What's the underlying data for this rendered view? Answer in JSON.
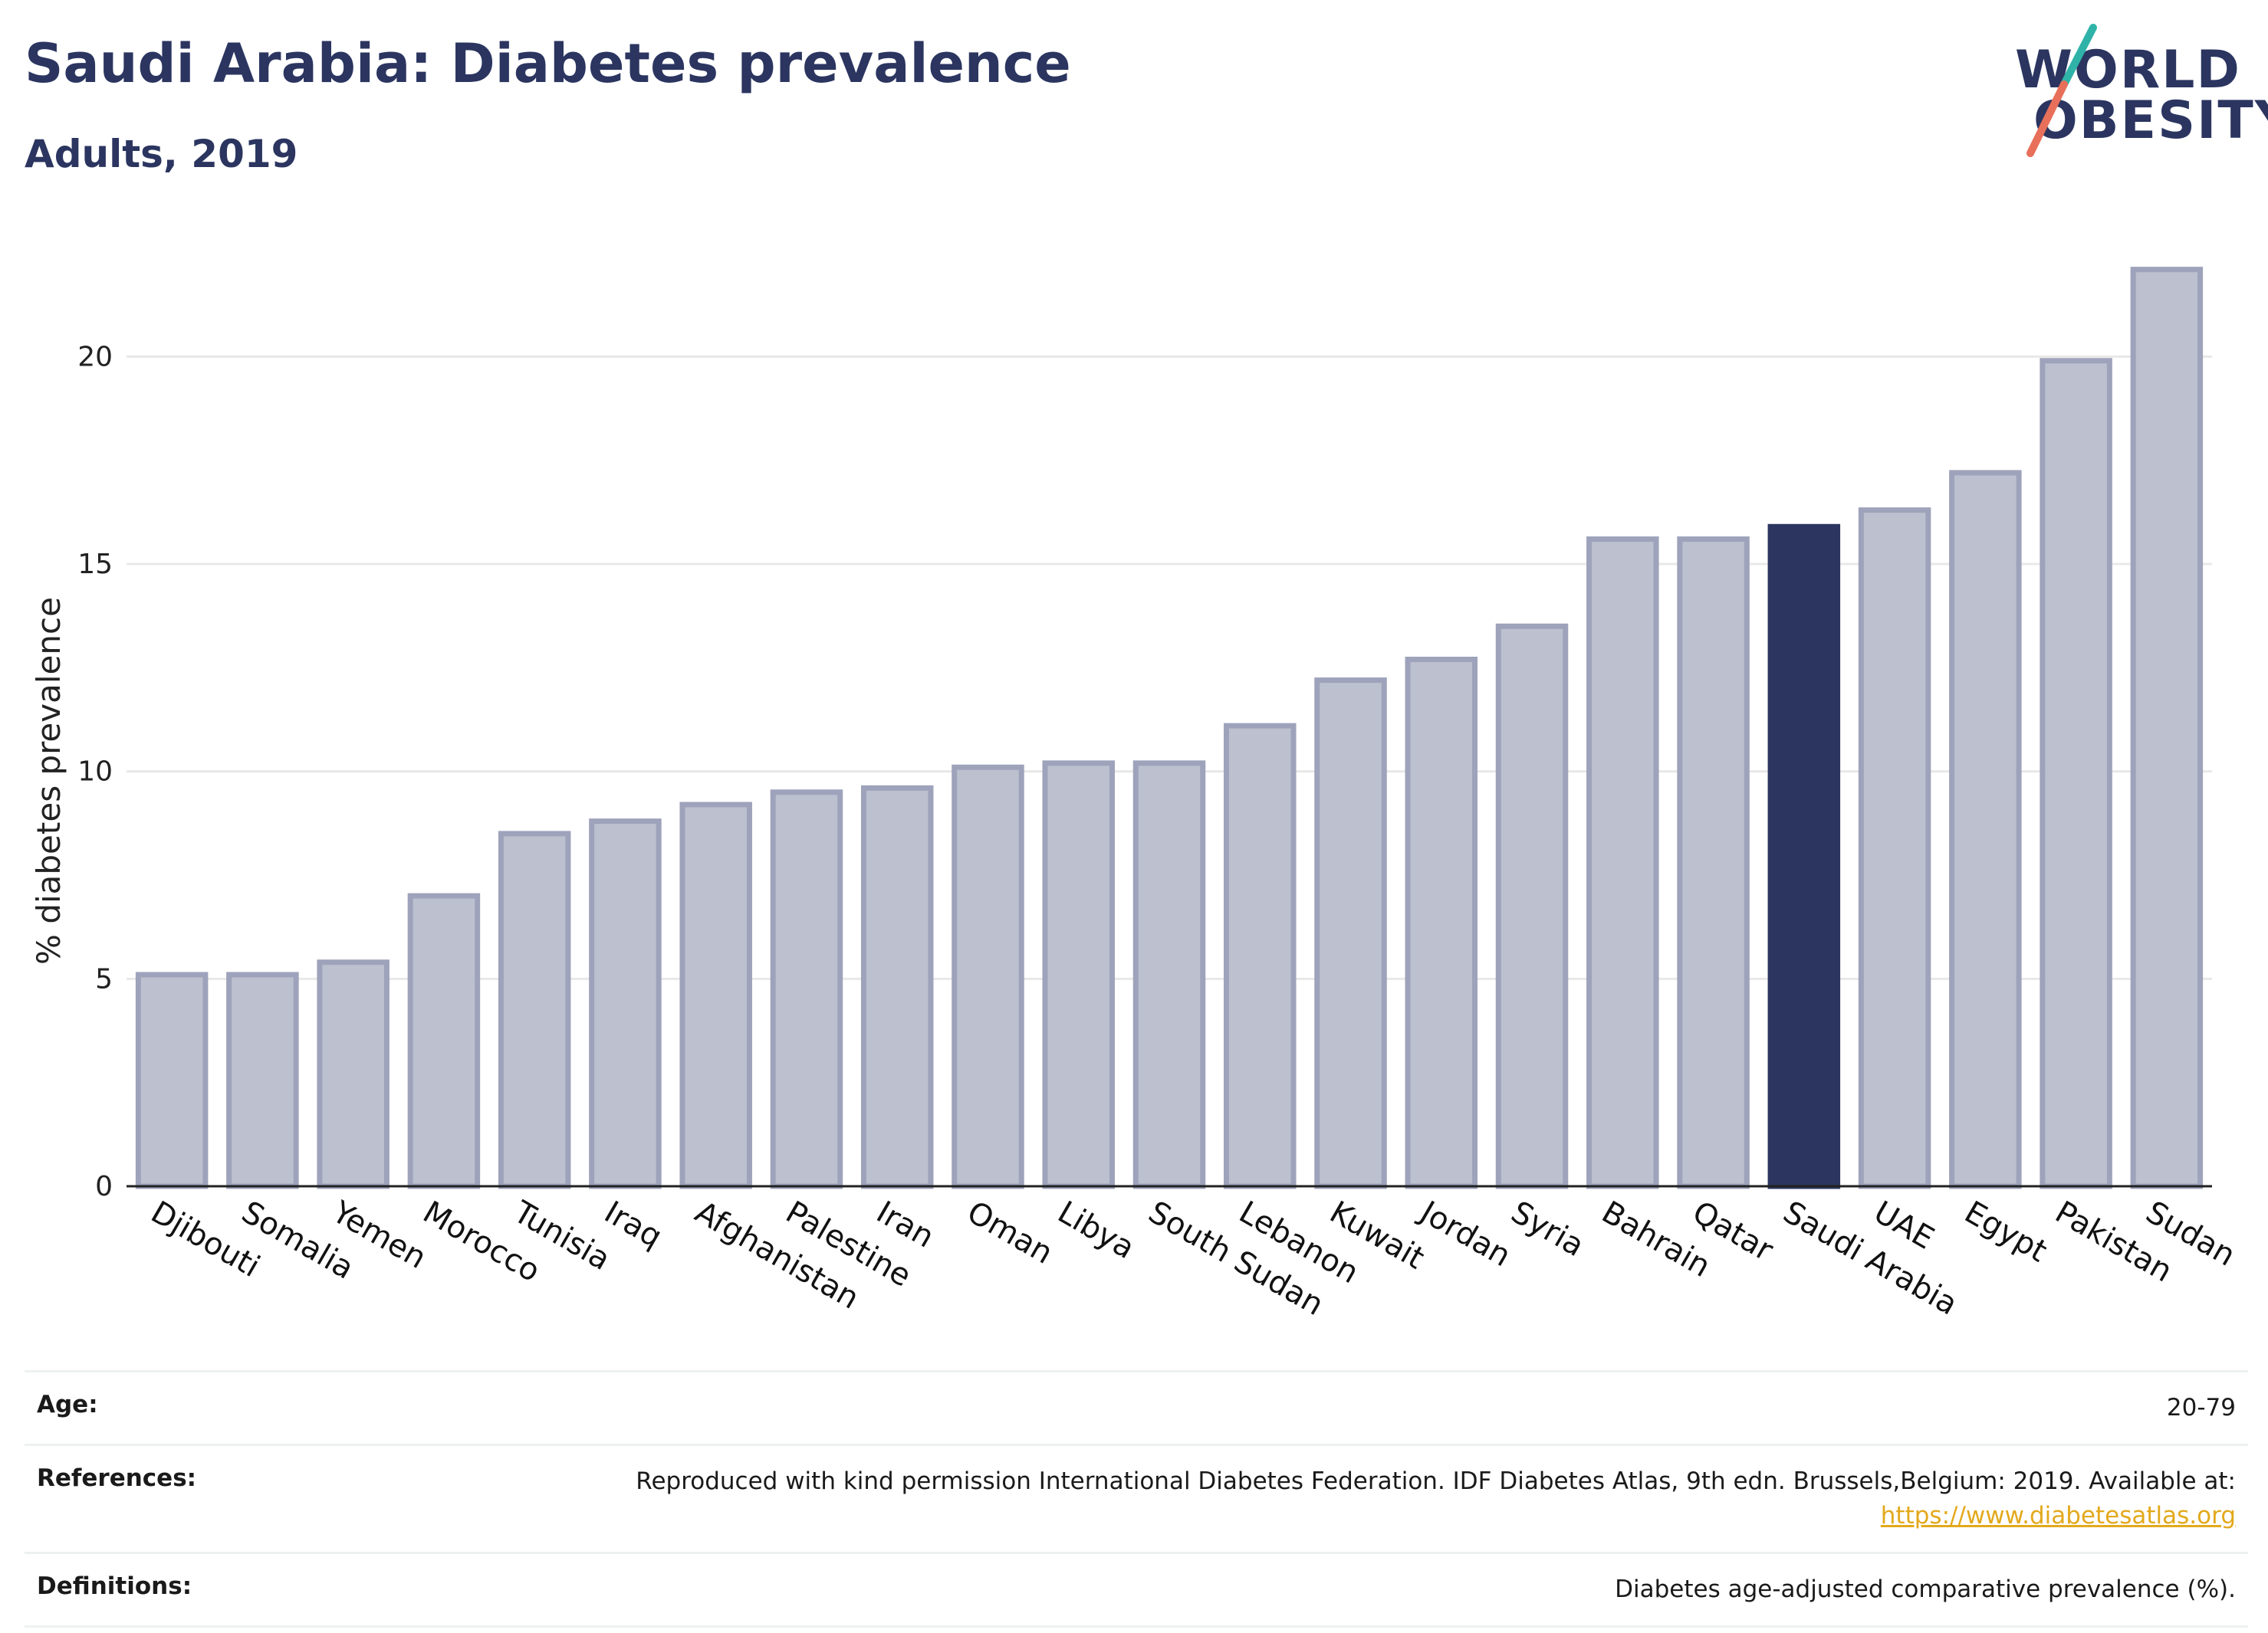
{
  "header": {
    "title": "Saudi Arabia: Diabetes prevalence",
    "subtitle": "Adults, 2019"
  },
  "logo": {
    "line1": "WORLD",
    "line2": "OBESITY",
    "colors": {
      "text": "#2b3560",
      "slash_teal": "#2fb3a8",
      "slash_coral": "#e8705a"
    }
  },
  "chart_data": {
    "type": "bar",
    "title": "Saudi Arabia: Diabetes prevalence",
    "subtitle": "Adults, 2019",
    "xlabel": "",
    "ylabel": "% diabetes prevalence",
    "ylim": [
      0,
      22.5
    ],
    "yticks": [
      0,
      5,
      10,
      15,
      20
    ],
    "grid": true,
    "categories": [
      "Djibouti",
      "Somalia",
      "Yemen",
      "Morocco",
      "Tunisia",
      "Iraq",
      "Afghanistan",
      "Palestine",
      "Iran",
      "Oman",
      "Libya",
      "South Sudan",
      "Lebanon",
      "Kuwait",
      "Jordan",
      "Syria",
      "Bahrain",
      "Qatar",
      "Saudi Arabia",
      "UAE",
      "Egypt",
      "Pakistan",
      "Sudan"
    ],
    "values": [
      5.1,
      5.1,
      5.4,
      7.0,
      8.5,
      8.8,
      9.2,
      9.5,
      9.6,
      10.1,
      10.2,
      10.2,
      11.1,
      12.2,
      12.7,
      13.5,
      15.6,
      15.6,
      15.9,
      16.3,
      17.2,
      19.9,
      22.1
    ],
    "highlight": "Saudi Arabia",
    "colors": {
      "bar_fill": "#bcc0cf",
      "bar_stroke": "#9ea3bb",
      "highlight_fill": "#2b3560",
      "gridline": "#e8e8e8",
      "axis": "#222222"
    }
  },
  "meta": {
    "age_label": "Age:",
    "age_value": "20-79",
    "references_label": "References:",
    "references_text": "Reproduced with kind permission International Diabetes Federation. IDF Diabetes Atlas, 9th edn. Brussels,Belgium: 2019. Available at:",
    "references_link": "https://www.diabetesatlas.org",
    "definitions_label": "Definitions:",
    "definitions_value": "Diabetes age-adjusted comparative prevalence (%)."
  }
}
